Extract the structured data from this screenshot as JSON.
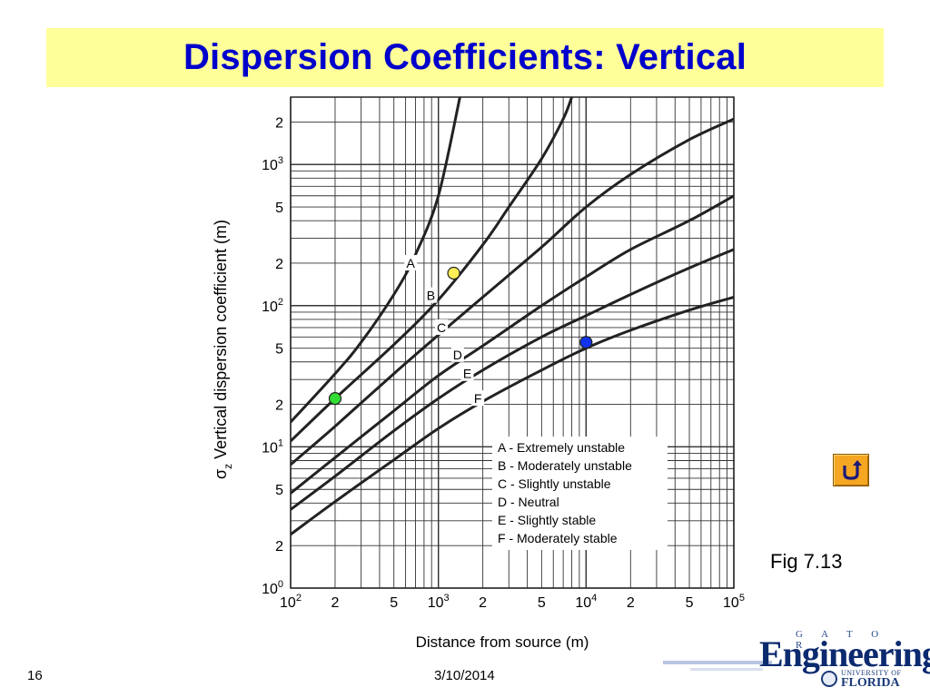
{
  "slide": {
    "title": "Dispersion Coefficients: Vertical",
    "figure_label": "Fig 7.13",
    "slide_number": "16",
    "date": "3/10/2014"
  },
  "logo": {
    "top_text": "G A T O R",
    "main_text": "Engineering",
    "university_text": "UNIVERSITY OF",
    "florida_text": "FLORIDA"
  },
  "colors": {
    "title_bar": "#ffff99",
    "title_text": "#0000cc",
    "curve": "#222222",
    "marker_green": "#33dd33",
    "marker_yellow": "#ffee55",
    "marker_blue": "#1133ee",
    "return_button": "#f5a623"
  },
  "icons": {
    "return_button": "return-arrow-icon"
  },
  "chart_data": {
    "type": "line",
    "xlabel": "Distance from source (m)",
    "ylabel_prefix": "σ",
    "ylabel_subscript": "z",
    "ylabel_text": "Vertical dispersion coefficient (m)",
    "xscale": "log",
    "yscale": "log",
    "xlim": [
      100,
      100000
    ],
    "ylim": [
      1,
      3000
    ],
    "grid": true,
    "x_ticks": [
      {
        "value": 100,
        "base": "10",
        "exp": "2"
      },
      {
        "value": 200,
        "base": "2",
        "exp": ""
      },
      {
        "value": 500,
        "base": "5",
        "exp": ""
      },
      {
        "value": 1000,
        "base": "10",
        "exp": "3"
      },
      {
        "value": 2000,
        "base": "2",
        "exp": ""
      },
      {
        "value": 5000,
        "base": "5",
        "exp": ""
      },
      {
        "value": 10000,
        "base": "10",
        "exp": "4"
      },
      {
        "value": 20000,
        "base": "2",
        "exp": ""
      },
      {
        "value": 50000,
        "base": "5",
        "exp": ""
      },
      {
        "value": 100000,
        "base": "10",
        "exp": "5"
      }
    ],
    "y_ticks": [
      {
        "value": 1,
        "base": "10",
        "exp": "0"
      },
      {
        "value": 2,
        "base": "2",
        "exp": ""
      },
      {
        "value": 5,
        "base": "5",
        "exp": ""
      },
      {
        "value": 10,
        "base": "10",
        "exp": "1"
      },
      {
        "value": 20,
        "base": "2",
        "exp": ""
      },
      {
        "value": 50,
        "base": "5",
        "exp": ""
      },
      {
        "value": 100,
        "base": "10",
        "exp": "2"
      },
      {
        "value": 200,
        "base": "2",
        "exp": ""
      },
      {
        "value": 500,
        "base": "5",
        "exp": ""
      },
      {
        "value": 1000,
        "base": "10",
        "exp": "3"
      },
      {
        "value": 2000,
        "base": "2",
        "exp": ""
      }
    ],
    "series": [
      {
        "name": "A",
        "curve_label_at": [
          650,
          200
        ],
        "points": [
          [
            100,
            15
          ],
          [
            200,
            33
          ],
          [
            300,
            55
          ],
          [
            500,
            120
          ],
          [
            700,
            230
          ],
          [
            1000,
            600
          ],
          [
            1400,
            3000
          ]
        ]
      },
      {
        "name": "B",
        "curve_label_at": [
          890,
          118
        ],
        "points": [
          [
            100,
            11
          ],
          [
            200,
            22
          ],
          [
            500,
            53
          ],
          [
            1000,
            110
          ],
          [
            2000,
            270
          ],
          [
            3000,
            500
          ],
          [
            5000,
            1100
          ],
          [
            7000,
            2100
          ],
          [
            8000,
            3000
          ]
        ]
      },
      {
        "name": "C",
        "curve_label_at": [
          1050,
          70
        ],
        "points": [
          [
            100,
            7.5
          ],
          [
            200,
            14
          ],
          [
            500,
            33
          ],
          [
            1000,
            62
          ],
          [
            2000,
            115
          ],
          [
            5000,
            260
          ],
          [
            10000,
            500
          ],
          [
            20000,
            850
          ],
          [
            50000,
            1500
          ],
          [
            100000,
            2100
          ]
        ]
      },
      {
        "name": "D",
        "curve_label_at": [
          1350,
          45
        ],
        "points": [
          [
            100,
            4.7
          ],
          [
            200,
            8.4
          ],
          [
            500,
            18
          ],
          [
            1000,
            32
          ],
          [
            2000,
            52
          ],
          [
            5000,
            100
          ],
          [
            10000,
            160
          ],
          [
            20000,
            250
          ],
          [
            50000,
            400
          ],
          [
            100000,
            600
          ]
        ]
      },
      {
        "name": "E",
        "curve_label_at": [
          1570,
          33
        ],
        "points": [
          [
            100,
            3.6
          ],
          [
            200,
            6.2
          ],
          [
            500,
            13
          ],
          [
            1000,
            22
          ],
          [
            2000,
            35
          ],
          [
            5000,
            60
          ],
          [
            10000,
            85
          ],
          [
            20000,
            120
          ],
          [
            50000,
            185
          ],
          [
            100000,
            250
          ]
        ]
      },
      {
        "name": "F",
        "curve_label_at": [
          1850,
          22
        ],
        "points": [
          [
            100,
            2.4
          ],
          [
            200,
            4.1
          ],
          [
            500,
            8.1
          ],
          [
            1000,
            13.5
          ],
          [
            2000,
            21
          ],
          [
            5000,
            35
          ],
          [
            10000,
            50
          ],
          [
            20000,
            67
          ],
          [
            50000,
            93
          ],
          [
            100000,
            115
          ]
        ]
      }
    ],
    "legend": {
      "position": "bottom-right",
      "entries": [
        "A - Extremely  unstable",
        "B - Moderately unstable",
        "C - Slightly unstable",
        "D - Neutral",
        "E - Slightly stable",
        "F - Moderately stable"
      ]
    },
    "markers": [
      {
        "x": 200,
        "y": 22,
        "color": "#33dd33"
      },
      {
        "x": 1270,
        "y": 170,
        "color": "#ffee55"
      },
      {
        "x": 10000,
        "y": 55,
        "color": "#1133ee"
      }
    ]
  }
}
